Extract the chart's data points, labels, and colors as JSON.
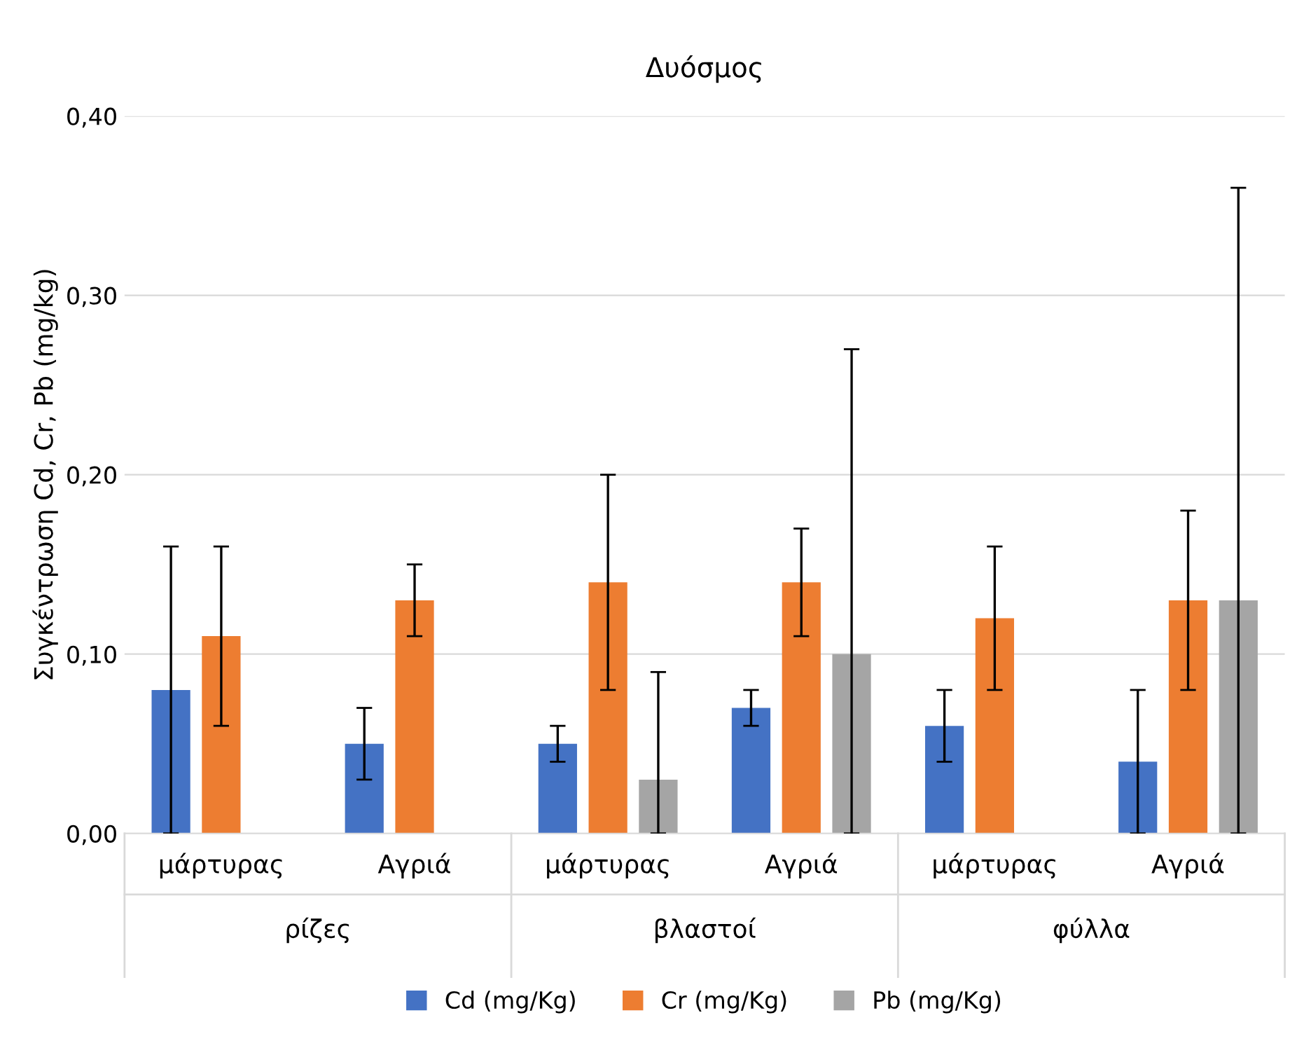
{
  "chart_data": {
    "type": "bar",
    "title": "Δυόσμος",
    "ylabel": "Συγκέντρωση Cd, Cr, Pb (mg/kg)",
    "categories": [
      "μάρτυρας",
      "Αγριά",
      "μάρτυρας",
      "Αγριά",
      "μάρτυρας",
      "Αγριά"
    ],
    "annotations": [
      "ρίζες",
      "βλαστοί",
      "φύλλα"
    ],
    "series": [
      {
        "name": "Cd (mg/Kg)",
        "color": "#4472c4",
        "values": [
          0.08,
          0.05,
          0.05,
          0.07,
          0.06,
          0.04
        ],
        "errors": [
          0.08,
          0.02,
          0.01,
          0.01,
          0.02,
          0.04
        ]
      },
      {
        "name": "Cr (mg/Kg)",
        "color": "#ed7d31",
        "values": [
          0.11,
          0.13,
          0.14,
          0.14,
          0.12,
          0.13
        ],
        "errors": [
          0.05,
          0.02,
          0.06,
          0.03,
          0.04,
          0.05
        ]
      },
      {
        "name": "Pb (mg/Kg)",
        "color": "#a5a5a5",
        "values": [
          null,
          null,
          0.03,
          0.1,
          null,
          0.13
        ],
        "errors": [
          null,
          null,
          [
            0.0,
            0.09
          ],
          [
            0.0,
            0.27
          ],
          null,
          [
            0.0,
            0.36
          ]
        ]
      }
    ],
    "ylim": [
      0,
      0.4
    ],
    "yticks": [
      {
        "value": 0,
        "label": "0,00"
      },
      {
        "value": 0.1,
        "label": "0,10"
      },
      {
        "value": 0.2,
        "label": "0,20"
      },
      {
        "value": 0.3,
        "label": "0,30"
      },
      {
        "value": 0.4,
        "label": "0,40"
      }
    ],
    "grid": "y",
    "legend": "bottom"
  }
}
